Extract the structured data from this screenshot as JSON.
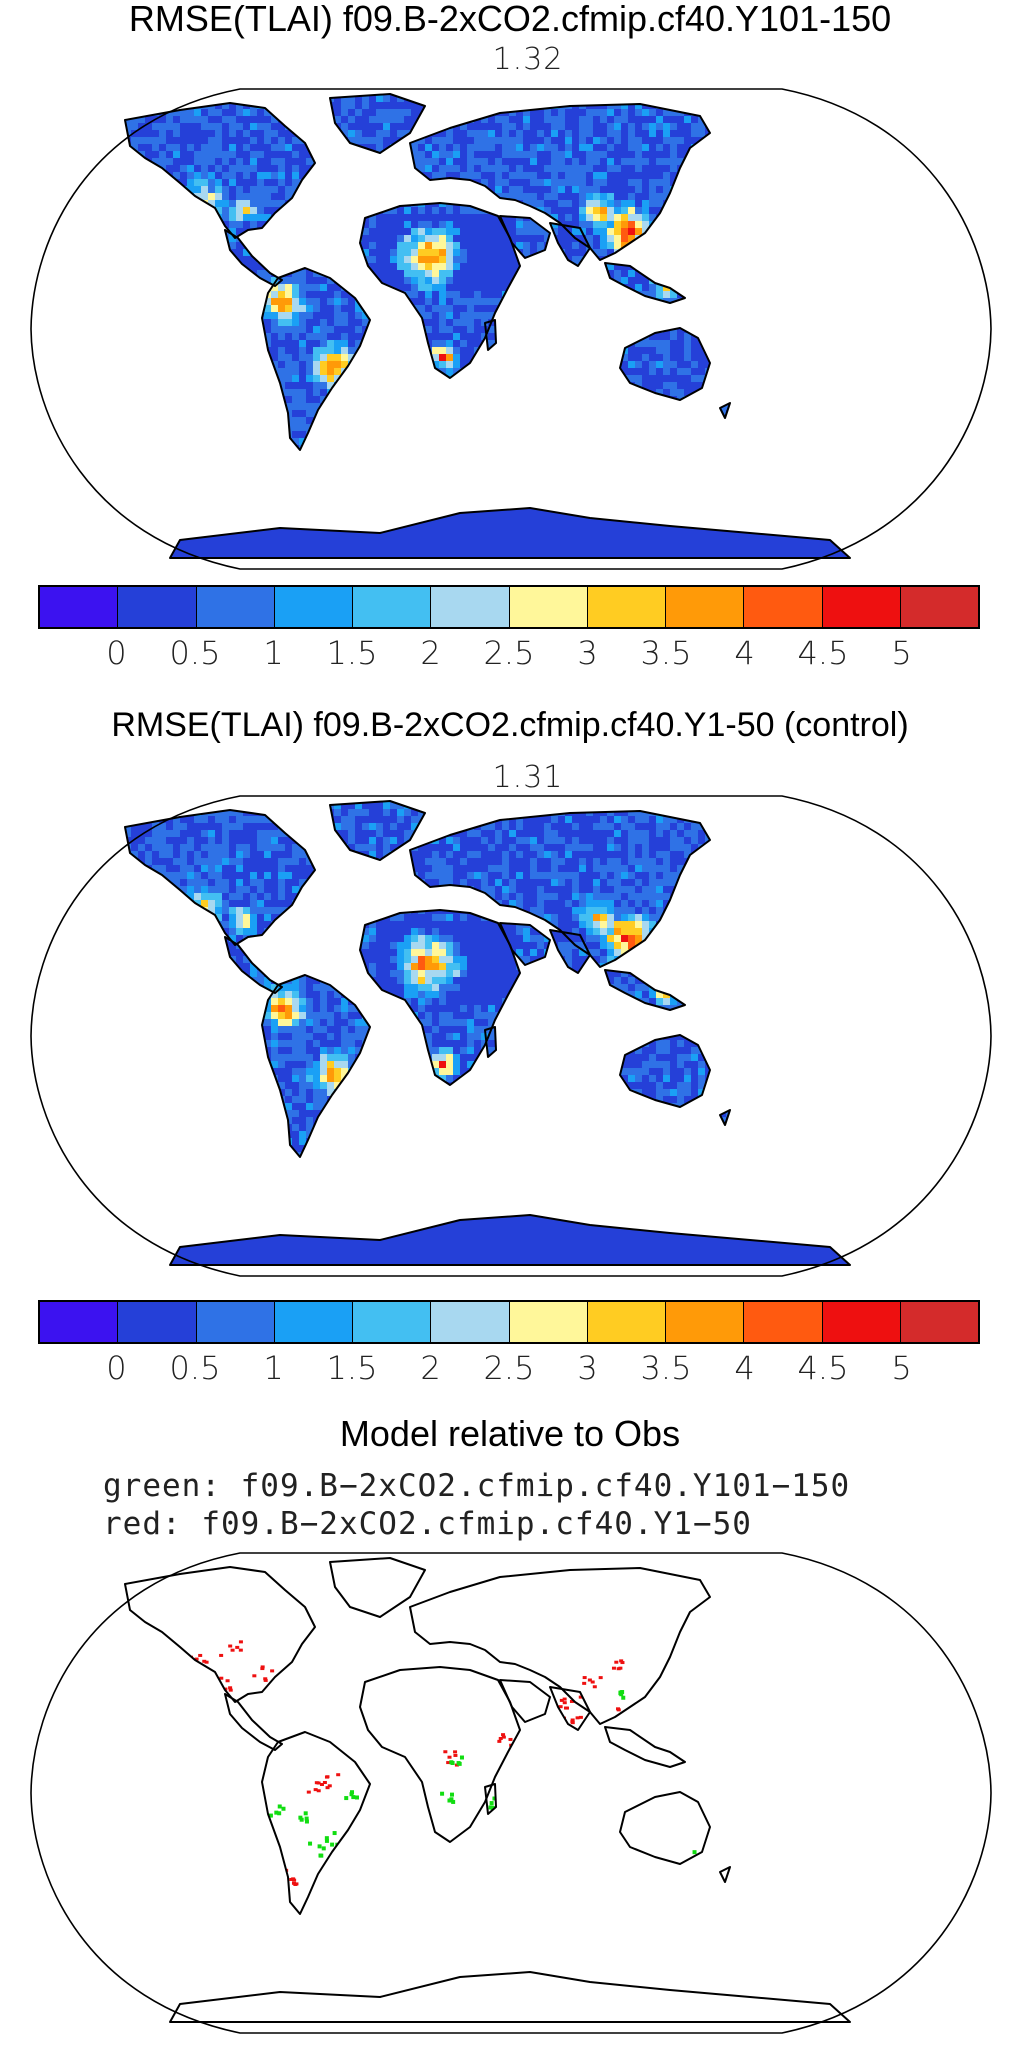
{
  "panels": [
    {
      "title": "RMSE(TLAI) f09.B-2xCO2.cfmip.cf40.Y101-150",
      "value": "1.32"
    },
    {
      "title": "RMSE(TLAI) f09.B-2xCO2.cfmip.cf40.Y1-50 (control)",
      "value": "1.31"
    }
  ],
  "colorbar": {
    "colors": [
      "#3c12f0",
      "#2540d8",
      "#2f72e6",
      "#1aa0f5",
      "#43bff2",
      "#a8d8f0",
      "#fff79a",
      "#ffcc22",
      "#ff9a08",
      "#ff5a10",
      "#ee1010",
      "#d42b2b"
    ],
    "tick_labels": [
      "0",
      "0.5",
      "1",
      "1.5",
      "2",
      "2.5",
      "3",
      "3.5",
      "4",
      "4.5",
      "5"
    ]
  },
  "comparison": {
    "heading": "Model relative to Obs",
    "green_label": "green: f09.B−2xCO2.cfmip.cf40.Y101−150",
    "red_label": "red: f09.B−2xCO2.cfmip.cf40.Y1−50",
    "green_color": "#11dd11",
    "red_color": "#ee1010"
  }
}
